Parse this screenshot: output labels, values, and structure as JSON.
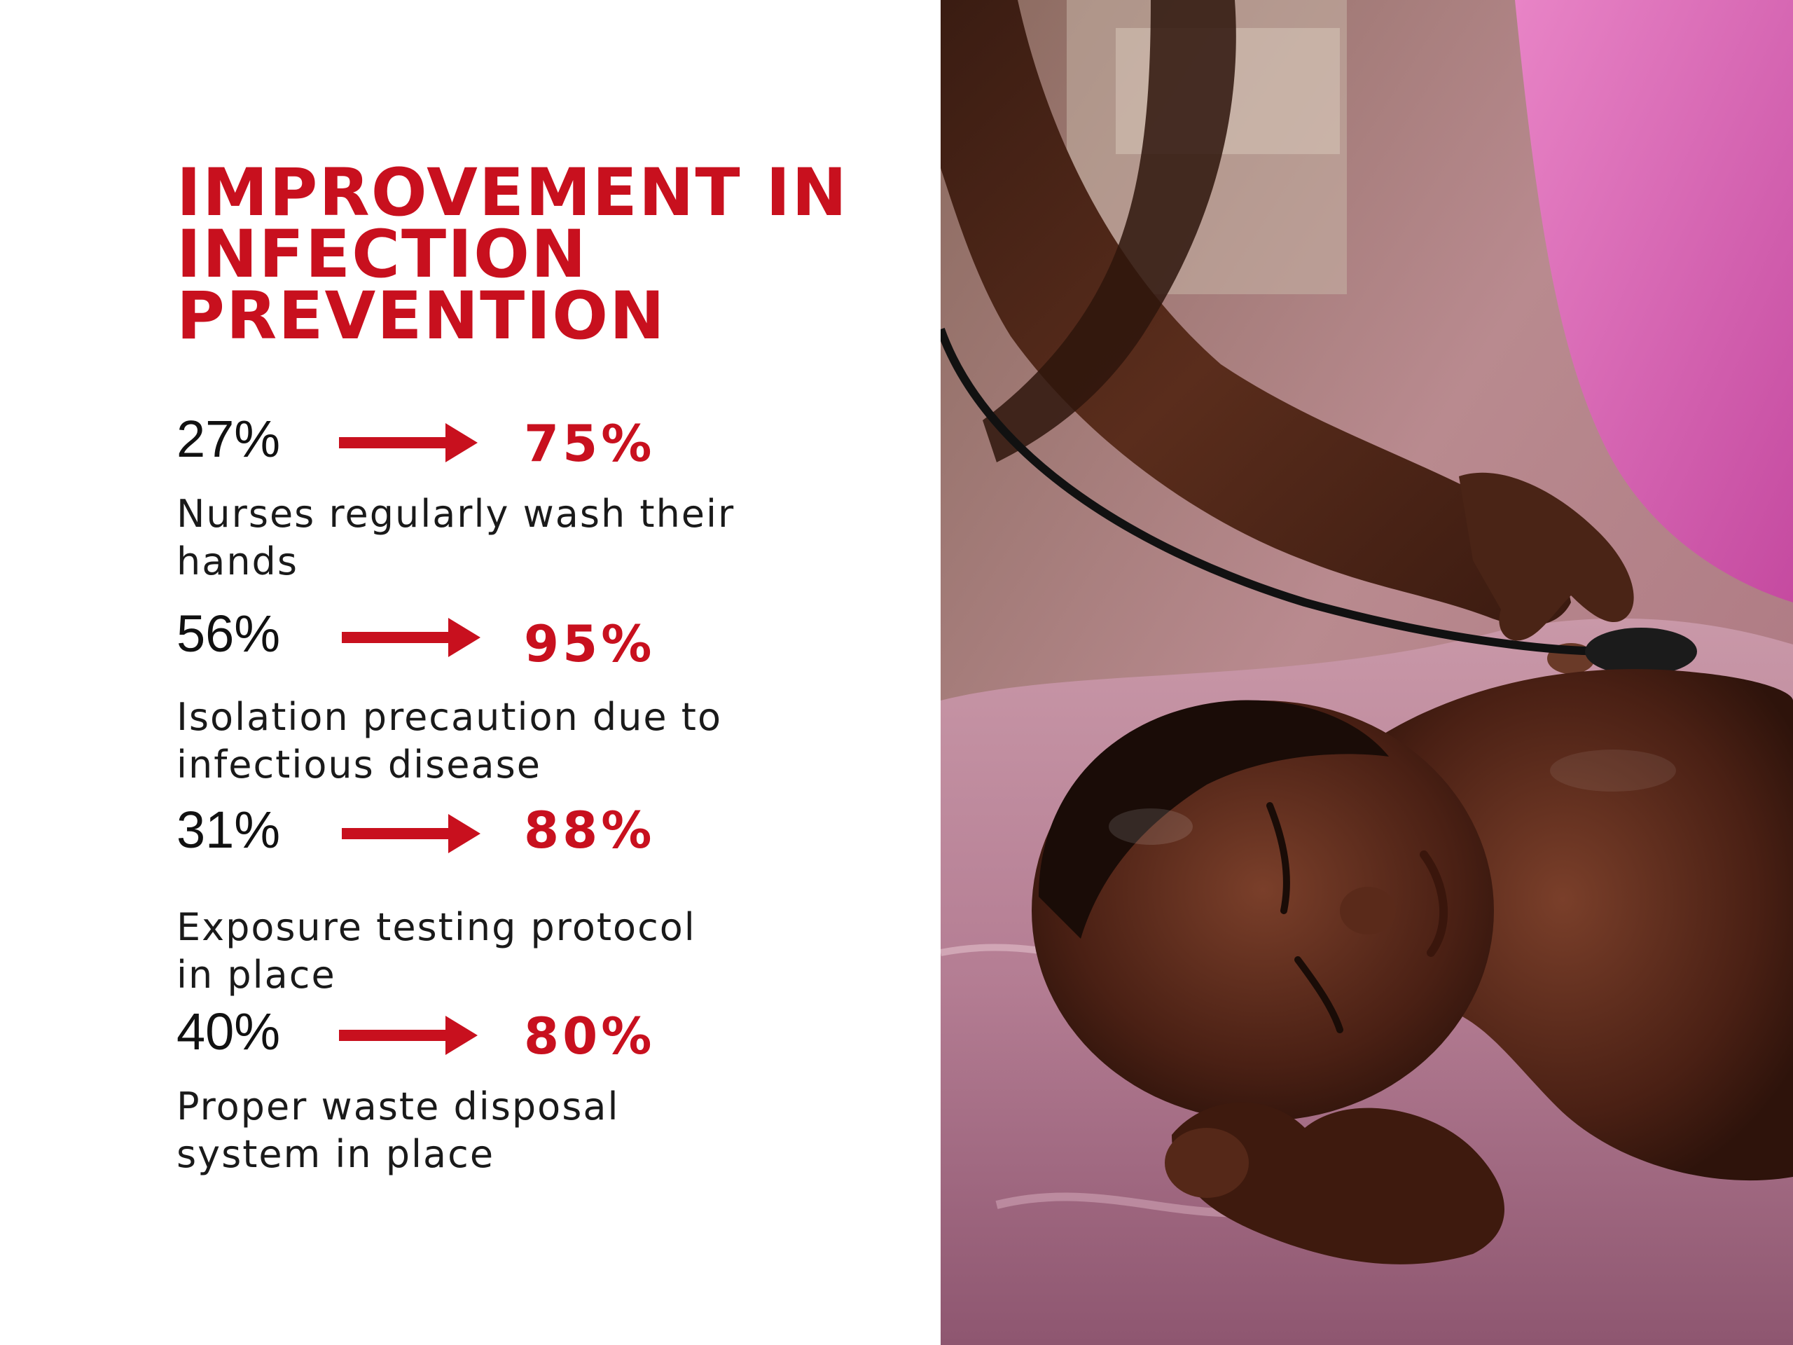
{
  "title": {
    "line1": "IMPROVEMENT IN",
    "line2": "INFECTION",
    "line3": "PREVENTION"
  },
  "stats": [
    {
      "before": "27%",
      "after": "75%",
      "description_line1": "Nurses regularly wash their",
      "description_line2": "hands"
    },
    {
      "before": "56%",
      "after": "95%",
      "description_line1": "Isolation precaution due to",
      "description_line2": "infectious disease"
    },
    {
      "before": "31%",
      "after": "88%",
      "description_line1": "Exposure testing protocol",
      "description_line2": "in place"
    },
    {
      "before": "40%",
      "after": "80%",
      "description_line1": "Proper waste disposal",
      "description_line2": "system in place"
    }
  ],
  "colors": {
    "accent": "#c8101e",
    "text": "#111111",
    "background": "#ffffff"
  },
  "icons": {
    "arrow": "right-arrow-icon"
  }
}
